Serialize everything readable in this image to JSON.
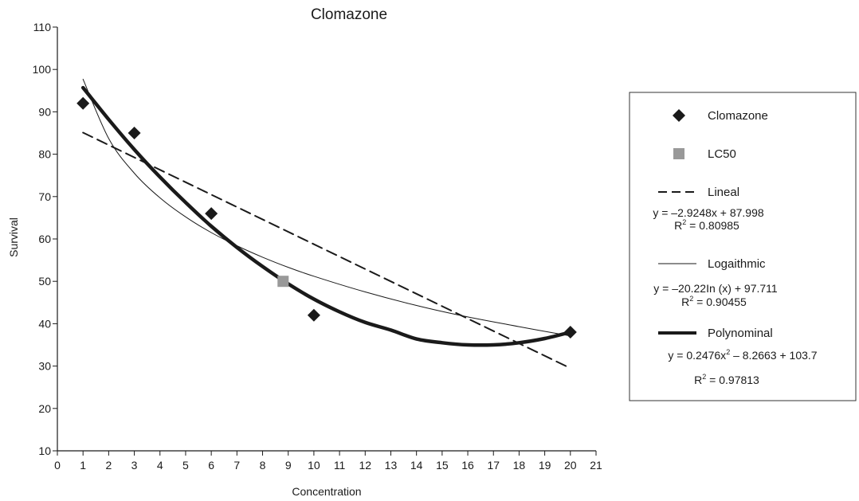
{
  "chart_data": {
    "type": "scatter",
    "title": "Clomazone",
    "xlabel": "Concentration",
    "ylabel": "Survival",
    "xlim": [
      0,
      21
    ],
    "ylim": [
      10,
      110
    ],
    "x_ticks": [
      "0",
      "1",
      "2",
      "3",
      "4",
      "5",
      "6",
      "7",
      "8",
      "9",
      "10",
      "11",
      "12",
      "13",
      "14",
      "15",
      "16",
      "17",
      "18",
      "19",
      "20",
      "21"
    ],
    "y_ticks": [
      "10",
      "20",
      "30",
      "40",
      "50",
      "60",
      "70",
      "80",
      "90",
      "100",
      "110"
    ],
    "grid": false,
    "legend_position": "right",
    "series": [
      {
        "name": "Clomazone",
        "kind": "points",
        "marker": "diamond",
        "color": "#1a1a1a",
        "points": [
          [
            1,
            92
          ],
          [
            3,
            85
          ],
          [
            6,
            66
          ],
          [
            10,
            42
          ],
          [
            20,
            38
          ]
        ]
      },
      {
        "name": "LC50",
        "kind": "points",
        "marker": "square",
        "color": "#999999",
        "points": [
          [
            8.8,
            50
          ]
        ]
      },
      {
        "name": "Lineal",
        "kind": "line",
        "style": "dashed",
        "color": "#1a1a1a",
        "points": [
          [
            1,
            85.1
          ],
          [
            20,
            29.5
          ]
        ]
      },
      {
        "name": "Logaithmic",
        "kind": "line",
        "style": "thin",
        "color": "#1a1a1a",
        "points": [
          [
            1,
            97.7
          ],
          [
            2,
            83.7
          ],
          [
            3,
            75.5
          ],
          [
            4,
            69.7
          ],
          [
            5,
            65.2
          ],
          [
            6,
            61.5
          ],
          [
            7,
            58.4
          ],
          [
            8,
            55.7
          ],
          [
            9,
            53.3
          ],
          [
            10,
            51.2
          ],
          [
            12,
            47.5
          ],
          [
            14,
            44.3
          ],
          [
            16,
            41.6
          ],
          [
            18,
            39.3
          ],
          [
            20,
            37.1
          ]
        ]
      },
      {
        "name": "Polynominal",
        "kind": "line",
        "style": "thick",
        "color": "#1a1a1a",
        "points": [
          [
            1,
            95.7
          ],
          [
            2,
            88.2
          ],
          [
            3,
            81.1
          ],
          [
            4,
            74.6
          ],
          [
            5,
            68.6
          ],
          [
            6,
            63.0
          ],
          [
            7,
            58.0
          ],
          [
            8,
            53.5
          ],
          [
            9,
            49.4
          ],
          [
            10,
            45.8
          ],
          [
            11,
            42.8
          ],
          [
            12,
            40.3
          ],
          [
            13,
            38.5
          ],
          [
            14,
            36.4
          ],
          [
            15,
            35.5
          ],
          [
            16,
            35.0
          ],
          [
            17,
            35.0
          ],
          [
            18,
            35.5
          ],
          [
            19,
            36.5
          ],
          [
            20,
            38.0
          ]
        ]
      }
    ],
    "legend": {
      "items": [
        {
          "label": "Clomazone",
          "symbol": "diamond"
        },
        {
          "label": "LC50",
          "symbol": "square"
        },
        {
          "label": "Lineal",
          "symbol": "dashed-line",
          "equation": "y = –2.9248x + 87.998",
          "r2_prefix": "R",
          "r2_exp": "2",
          "r2_value": " = 0.80985"
        },
        {
          "label": "Logaithmic",
          "symbol": "thin-line",
          "equation": "y = –20.22In (x) + 97.711",
          "r2_prefix": "R",
          "r2_exp": "2",
          "r2_value": " = 0.90455"
        },
        {
          "label": "Polynominal",
          "symbol": "thick-line",
          "equation_a": "y = 0.2476x",
          "equation_exp": "2",
          "equation_b": " – 8.2663 + 103.7",
          "r2_prefix": "R",
          "r2_exp": "2",
          "r2_value": " = 0.97813"
        }
      ]
    }
  }
}
